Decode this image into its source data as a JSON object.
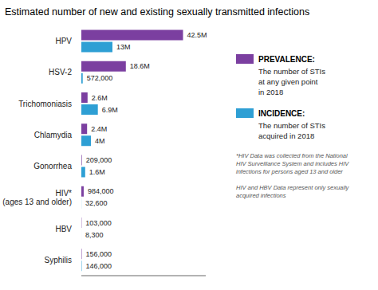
{
  "chart_data": {
    "type": "bar",
    "orientation": "horizontal",
    "title": "Estimated number of new and existing sexually transmitted infections",
    "categories": [
      "HPV",
      "HSV-2",
      "Trichomoniasis",
      "Chlamydia",
      "Gonorrhea",
      "HIV*\n(ages 13 and older)",
      "HBV",
      "Syphilis"
    ],
    "series": [
      {
        "name": "PREVALENCE:",
        "color": "#7B3FA0",
        "values": [
          42500000,
          18600000,
          2600000,
          2400000,
          209000,
          984000,
          103000,
          156000
        ],
        "value_labels": [
          "42.5M",
          "18.6M",
          "2.6M",
          "2.4M",
          "209,000",
          "984,000",
          "103,000",
          "156,000"
        ]
      },
      {
        "name": "INCIDENCE:",
        "color": "#2E9FD4",
        "values": [
          13000000,
          572000,
          6900000,
          4000000,
          1600000,
          32600,
          8300,
          146000
        ],
        "value_labels": [
          "13M",
          "572,000",
          "6.9M",
          "4M",
          "1.6M",
          "32,600",
          "8,300",
          "146,000"
        ]
      }
    ],
    "xlim": [
      0,
      52000000
    ],
    "data_labels": true,
    "tick_labels": "y",
    "grid": false,
    "legend": "right",
    "annotations": [
      "The number of STIs\nat any given point\nin 2018",
      "The number of STIs\nacquired in 2018",
      "*HIV Data was collected from the National\nHIV Surveillance System and includes HIV\ninfections for persons aged 13 and older",
      "HIV and HBV Data represent only sexually\nacquired infections"
    ]
  }
}
